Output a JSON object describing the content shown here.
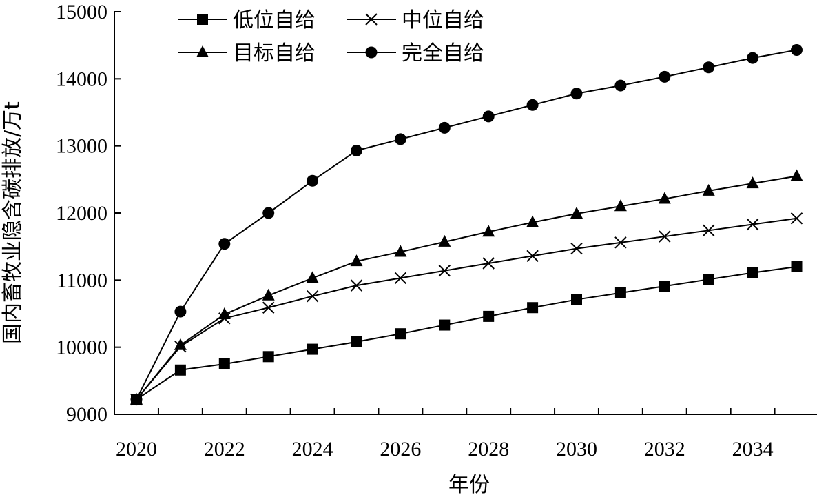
{
  "chart_data": {
    "type": "line",
    "xlabel": "年份",
    "ylabel": "国内畜牧业隐含碳排放/万t",
    "xlim": [
      2020,
      2035
    ],
    "ylim": [
      9000,
      15000
    ],
    "xticks": [
      "2020",
      "2022",
      "2024",
      "2026",
      "2028",
      "2030",
      "2032",
      "2034"
    ],
    "yticks": [
      "9000",
      "10000",
      "11000",
      "12000",
      "13000",
      "14000",
      "15000"
    ],
    "grid": false,
    "legend_position": "top",
    "x": [
      2020,
      2021,
      2022,
      2023,
      2024,
      2025,
      2026,
      2027,
      2028,
      2029,
      2030,
      2031,
      2032,
      2033,
      2034,
      2035
    ],
    "series": [
      {
        "name": "低位自给",
        "marker": "square",
        "values": [
          9220,
          9660,
          9750,
          9860,
          9970,
          10080,
          10200,
          10330,
          10460,
          10590,
          10710,
          10810,
          10910,
          11010,
          11110,
          11200
        ]
      },
      {
        "name": "中位自给",
        "marker": "x",
        "values": [
          9220,
          10010,
          10430,
          10590,
          10760,
          10920,
          11030,
          11140,
          11250,
          11360,
          11470,
          11560,
          11650,
          11740,
          11830,
          11920
        ]
      },
      {
        "name": "目标自给",
        "marker": "triangle",
        "values": [
          9220,
          10030,
          10490,
          10770,
          11030,
          11280,
          11420,
          11570,
          11720,
          11860,
          11990,
          12100,
          12210,
          12330,
          12440,
          12550
        ]
      },
      {
        "name": "完全自给",
        "marker": "circle",
        "values": [
          9220,
          10530,
          11540,
          12000,
          12480,
          12930,
          13100,
          13270,
          13440,
          13610,
          13780,
          13900,
          14030,
          14170,
          14310,
          14430
        ]
      }
    ]
  }
}
